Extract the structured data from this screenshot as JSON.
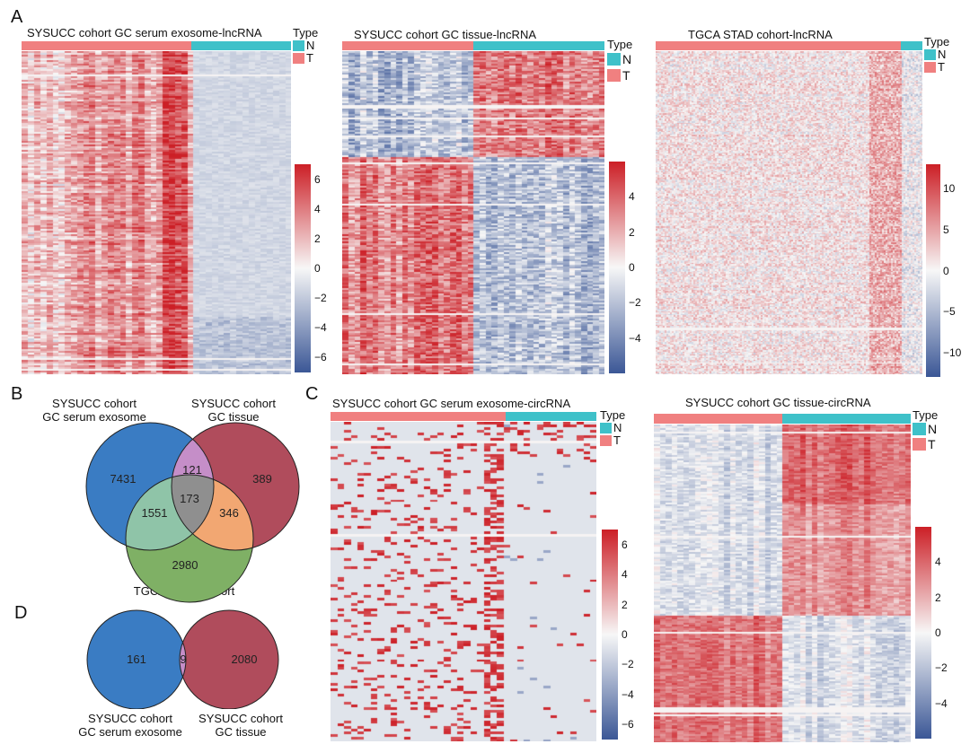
{
  "panels": {
    "A": "A",
    "B": "B",
    "C": "C",
    "D": "D"
  },
  "colors": {
    "tumor": "#f08080",
    "normal": "#3fc1c9",
    "high": "#cc1f26",
    "mid": "#f7f7f7",
    "low": "#3b5796",
    "venn_blue": "#3a7cc3",
    "venn_red": "#b04c5c",
    "venn_green": "#7fb065",
    "venn_purple": "#c58ec8",
    "venn_teal": "#8fc4a8",
    "venn_orange": "#f2a772",
    "venn_gray": "#8f8f8f"
  },
  "legend": {
    "title": "Type",
    "items": [
      {
        "label": "N",
        "color": "#3fc1c9"
      },
      {
        "label": "T",
        "color": "#f08080"
      }
    ]
  },
  "chart_data": [
    {
      "type": "heatmap",
      "id": "a1",
      "title": "SYSUCC cohort GC serum exosome-lncRNA",
      "groups": [
        {
          "label": "T",
          "fraction": 0.63
        },
        {
          "label": "N",
          "fraction": 0.37
        }
      ],
      "colorbar": {
        "min": -7,
        "max": 7,
        "ticks": [
          6,
          4,
          2,
          0,
          -2,
          -4,
          -6
        ]
      }
    },
    {
      "type": "heatmap",
      "id": "a2",
      "title": "SYSUCC cohort GC tissue-lncRNA",
      "groups": [
        {
          "label": "T",
          "fraction": 0.5
        },
        {
          "label": "N",
          "fraction": 0.5
        }
      ],
      "colorbar": {
        "min": -6,
        "max": 6,
        "ticks": [
          4,
          2,
          0,
          -2,
          -4
        ]
      }
    },
    {
      "type": "heatmap",
      "id": "a3",
      "title": "TGCA STAD cohort-lncRNA",
      "groups": [
        {
          "label": "T",
          "fraction": 0.92
        },
        {
          "label": "N",
          "fraction": 0.08
        }
      ],
      "colorbar": {
        "min": -13,
        "max": 13,
        "ticks": [
          10,
          5,
          0,
          -5,
          -10
        ]
      }
    },
    {
      "type": "heatmap",
      "id": "c1",
      "title": "SYSUCC cohort GC serum exosome-circRNA",
      "groups": [
        {
          "label": "T",
          "fraction": 0.66
        },
        {
          "label": "N",
          "fraction": 0.34
        }
      ],
      "colorbar": {
        "min": -7,
        "max": 7,
        "ticks": [
          6,
          4,
          2,
          0,
          -2,
          -4,
          -6
        ]
      }
    },
    {
      "type": "heatmap",
      "id": "c2",
      "title": "SYSUCC cohort GC tissue-circRNA",
      "groups": [
        {
          "label": "T",
          "fraction": 0.5
        },
        {
          "label": "N",
          "fraction": 0.5
        }
      ],
      "colorbar": {
        "min": -6,
        "max": 6,
        "ticks": [
          4,
          2,
          0,
          -2,
          -4
        ]
      }
    }
  ],
  "venn_b": {
    "set1": {
      "line1": "SYSUCC cohort",
      "line2": "GC serum exosome"
    },
    "set2": {
      "line1": "SYSUCC cohort",
      "line2": "GC tissue"
    },
    "set3": {
      "line1": "TGCA STAD cohort"
    },
    "counts": {
      "only1": "7431",
      "only2": "389",
      "only3": "2980",
      "s12": "121",
      "s13": "1551",
      "s23": "346",
      "s123": "173"
    }
  },
  "venn_d": {
    "set1": {
      "line1": "SYSUCC cohort",
      "line2": "GC serum exosome"
    },
    "set2": {
      "line1": "SYSUCC cohort",
      "line2": "GC tissue"
    },
    "counts": {
      "only1": "161",
      "s12": "9",
      "only2": "2080"
    }
  }
}
